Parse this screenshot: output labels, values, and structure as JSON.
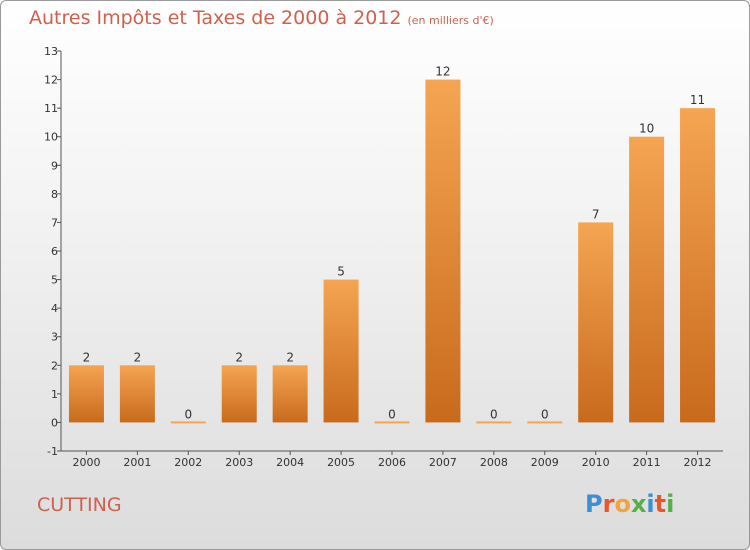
{
  "title": "Autres Impôts et Taxes de 2000 à 2012",
  "subtitle": "(en milliers d'€)",
  "commune": "CUTTING",
  "logo": {
    "text": "Proxiti",
    "letters": [
      "P",
      "r",
      "o",
      "x",
      "i",
      "t",
      "i"
    ],
    "colors": [
      "#3b8fd6",
      "#e8572a",
      "#f2a33a",
      "#55b047",
      "#3b8fd6",
      "#e8572a",
      "#55b047"
    ]
  },
  "colors": {
    "bar_top": "#f5a552",
    "bar_bottom": "#c86a1c",
    "text": "#333333",
    "title": "#d0604d",
    "grid": "#b0b0b0"
  },
  "chart_data": {
    "type": "bar",
    "title": "Autres Impôts et Taxes de 2000 à 2012",
    "subtitle": "(en milliers d'€)",
    "categories": [
      "2000",
      "2001",
      "2002",
      "2003",
      "2004",
      "2005",
      "2006",
      "2007",
      "2008",
      "2009",
      "2010",
      "2011",
      "2012"
    ],
    "values": [
      2,
      2,
      0,
      2,
      2,
      5,
      0,
      12,
      0,
      0,
      7,
      10,
      11
    ],
    "ylim": [
      -1,
      13
    ],
    "yticks": [
      -1,
      0,
      1,
      2,
      3,
      4,
      5,
      6,
      7,
      8,
      9,
      10,
      11,
      12,
      13
    ],
    "grid": false
  }
}
